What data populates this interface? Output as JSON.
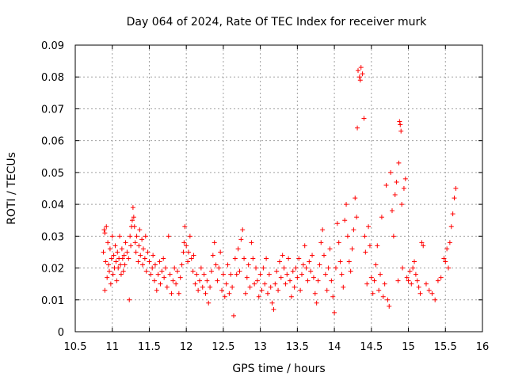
{
  "chart_data": {
    "type": "scatter",
    "title": "Day 064 of 2024, Rate Of TEC Index for receiver murk",
    "xlabel": "GPS time / hours",
    "ylabel": "ROTI / TECUs",
    "xlim": [
      10.5,
      16
    ],
    "ylim": [
      0,
      0.09
    ],
    "xticks": [
      "10.5",
      "11",
      "11.5",
      "12",
      "12.5",
      "13",
      "13.5",
      "14",
      "14.5",
      "15",
      "15.5",
      "16"
    ],
    "yticks": [
      "0",
      "0.01",
      "0.02",
      "0.03",
      "0.04",
      "0.05",
      "0.06",
      "0.07",
      "0.08",
      "0.09"
    ],
    "grid": true,
    "marker": "+",
    "color": "#ff0000",
    "series": [
      {
        "name": "ROTI",
        "points": [
          [
            10.88,
            0.025
          ],
          [
            10.89,
            0.032
          ],
          [
            10.9,
            0.013
          ],
          [
            10.9,
            0.031
          ],
          [
            10.91,
            0.022
          ],
          [
            10.92,
            0.033
          ],
          [
            10.93,
            0.017
          ],
          [
            10.94,
            0.028
          ],
          [
            10.95,
            0.021
          ],
          [
            10.96,
            0.019
          ],
          [
            10.97,
            0.026
          ],
          [
            10.98,
            0.015
          ],
          [
            10.99,
            0.023
          ],
          [
            11.0,
            0.03
          ],
          [
            11.01,
            0.018
          ],
          [
            11.02,
            0.024
          ],
          [
            11.03,
            0.02
          ],
          [
            11.04,
            0.027
          ],
          [
            11.05,
            0.022
          ],
          [
            11.06,
            0.016
          ],
          [
            11.07,
            0.025
          ],
          [
            11.08,
            0.02
          ],
          [
            11.09,
            0.023
          ],
          [
            11.1,
            0.03
          ],
          [
            11.11,
            0.021
          ],
          [
            11.12,
            0.018
          ],
          [
            11.13,
            0.026
          ],
          [
            11.14,
            0.023
          ],
          [
            11.15,
            0.019
          ],
          [
            11.16,
            0.024
          ],
          [
            11.17,
            0.021
          ],
          [
            11.18,
            0.028
          ],
          [
            11.2,
            0.025
          ],
          [
            11.22,
            0.023
          ],
          [
            11.23,
            0.01
          ],
          [
            11.24,
            0.03
          ],
          [
            11.25,
            0.027
          ],
          [
            11.26,
            0.033
          ],
          [
            11.27,
            0.035
          ],
          [
            11.28,
            0.039
          ],
          [
            11.29,
            0.036
          ],
          [
            11.3,
            0.033
          ],
          [
            11.31,
            0.028
          ],
          [
            11.32,
            0.025
          ],
          [
            11.33,
            0.03
          ],
          [
            11.35,
            0.022
          ],
          [
            11.36,
            0.027
          ],
          [
            11.37,
            0.032
          ],
          [
            11.38,
            0.024
          ],
          [
            11.4,
            0.029
          ],
          [
            11.41,
            0.021
          ],
          [
            11.42,
            0.026
          ],
          [
            11.44,
            0.023
          ],
          [
            11.45,
            0.03
          ],
          [
            11.46,
            0.019
          ],
          [
            11.48,
            0.025
          ],
          [
            11.5,
            0.022
          ],
          [
            11.52,
            0.018
          ],
          [
            11.54,
            0.02
          ],
          [
            11.55,
            0.024
          ],
          [
            11.57,
            0.016
          ],
          [
            11.58,
            0.021
          ],
          [
            11.6,
            0.013
          ],
          [
            11.62,
            0.018
          ],
          [
            11.64,
            0.022
          ],
          [
            11.65,
            0.015
          ],
          [
            11.67,
            0.019
          ],
          [
            11.69,
            0.023
          ],
          [
            11.7,
            0.017
          ],
          [
            11.72,
            0.02
          ],
          [
            11.74,
            0.014
          ],
          [
            11.76,
            0.03
          ],
          [
            11.78,
            0.018
          ],
          [
            11.8,
            0.012
          ],
          [
            11.82,
            0.016
          ],
          [
            11.84,
            0.02
          ],
          [
            11.86,
            0.015
          ],
          [
            11.88,
            0.019
          ],
          [
            11.9,
            0.012
          ],
          [
            11.92,
            0.017
          ],
          [
            11.94,
            0.021
          ],
          [
            11.96,
            0.025
          ],
          [
            11.97,
            0.028
          ],
          [
            11.98,
            0.033
          ],
          [
            12.0,
            0.027
          ],
          [
            12.02,
            0.022
          ],
          [
            12.03,
            0.025
          ],
          [
            12.05,
            0.03
          ],
          [
            12.07,
            0.023
          ],
          [
            12.09,
            0.019
          ],
          [
            12.1,
            0.024
          ],
          [
            12.12,
            0.015
          ],
          [
            12.14,
            0.018
          ],
          [
            12.16,
            0.013
          ],
          [
            12.18,
            0.016
          ],
          [
            12.2,
            0.02
          ],
          [
            12.22,
            0.014
          ],
          [
            12.24,
            0.018
          ],
          [
            12.26,
            0.012
          ],
          [
            12.28,
            0.016
          ],
          [
            12.3,
            0.009
          ],
          [
            12.32,
            0.014
          ],
          [
            12.34,
            0.019
          ],
          [
            12.36,
            0.024
          ],
          [
            12.38,
            0.028
          ],
          [
            12.4,
            0.021
          ],
          [
            12.42,
            0.016
          ],
          [
            12.44,
            0.02
          ],
          [
            12.46,
            0.025
          ],
          [
            12.48,
            0.013
          ],
          [
            12.5,
            0.018
          ],
          [
            12.52,
            0.011
          ],
          [
            12.54,
            0.015
          ],
          [
            12.56,
            0.021
          ],
          [
            12.58,
            0.012
          ],
          [
            12.6,
            0.018
          ],
          [
            12.62,
            0.014
          ],
          [
            12.64,
            0.005
          ],
          [
            12.66,
            0.023
          ],
          [
            12.68,
            0.018
          ],
          [
            12.7,
            0.026
          ],
          [
            12.72,
            0.019
          ],
          [
            12.74,
            0.029
          ],
          [
            12.76,
            0.032
          ],
          [
            12.78,
            0.023
          ],
          [
            12.8,
            0.012
          ],
          [
            12.82,
            0.017
          ],
          [
            12.84,
            0.021
          ],
          [
            12.86,
            0.014
          ],
          [
            12.88,
            0.028
          ],
          [
            12.9,
            0.023
          ],
          [
            12.92,
            0.015
          ],
          [
            12.94,
            0.02
          ],
          [
            12.96,
            0.016
          ],
          [
            12.98,
            0.011
          ],
          [
            13.0,
            0.018
          ],
          [
            13.02,
            0.013
          ],
          [
            13.04,
            0.02
          ],
          [
            13.06,
            0.015
          ],
          [
            13.08,
            0.023
          ],
          [
            13.1,
            0.012
          ],
          [
            13.12,
            0.018
          ],
          [
            13.14,
            0.014
          ],
          [
            13.16,
            0.009
          ],
          [
            13.18,
            0.007
          ],
          [
            13.2,
            0.015
          ],
          [
            13.22,
            0.019
          ],
          [
            13.24,
            0.013
          ],
          [
            13.26,
            0.022
          ],
          [
            13.28,
            0.017
          ],
          [
            13.3,
            0.024
          ],
          [
            13.32,
            0.02
          ],
          [
            13.34,
            0.015
          ],
          [
            13.36,
            0.018
          ],
          [
            13.38,
            0.023
          ],
          [
            13.4,
            0.016
          ],
          [
            13.42,
            0.011
          ],
          [
            13.44,
            0.019
          ],
          [
            13.46,
            0.014
          ],
          [
            13.48,
            0.02
          ],
          [
            13.5,
            0.017
          ],
          [
            13.52,
            0.023
          ],
          [
            13.54,
            0.013
          ],
          [
            13.56,
            0.018
          ],
          [
            13.58,
            0.021
          ],
          [
            13.6,
            0.027
          ],
          [
            13.62,
            0.02
          ],
          [
            13.64,
            0.016
          ],
          [
            13.66,
            0.022
          ],
          [
            13.68,
            0.019
          ],
          [
            13.7,
            0.024
          ],
          [
            13.72,
            0.017
          ],
          [
            13.74,
            0.012
          ],
          [
            13.76,
            0.009
          ],
          [
            13.78,
            0.016
          ],
          [
            13.8,
            0.021
          ],
          [
            13.82,
            0.028
          ],
          [
            13.84,
            0.032
          ],
          [
            13.86,
            0.024
          ],
          [
            13.88,
            0.018
          ],
          [
            13.9,
            0.013
          ],
          [
            13.92,
            0.02
          ],
          [
            13.94,
            0.026
          ],
          [
            13.96,
            0.016
          ],
          [
            13.98,
            0.011
          ],
          [
            14.0,
            0.006
          ],
          [
            14.02,
            0.02
          ],
          [
            14.04,
            0.034
          ],
          [
            14.06,
            0.028
          ],
          [
            14.08,
            0.022
          ],
          [
            14.1,
            0.018
          ],
          [
            14.12,
            0.014
          ],
          [
            14.14,
            0.035
          ],
          [
            14.16,
            0.04
          ],
          [
            14.18,
            0.03
          ],
          [
            14.2,
            0.022
          ],
          [
            14.22,
            0.019
          ],
          [
            14.24,
            0.026
          ],
          [
            14.26,
            0.032
          ],
          [
            14.28,
            0.042
          ],
          [
            14.3,
            0.036
          ],
          [
            14.31,
            0.064
          ],
          [
            14.32,
            0.082
          ],
          [
            14.34,
            0.08
          ],
          [
            14.35,
            0.079
          ],
          [
            14.36,
            0.083
          ],
          [
            14.38,
            0.081
          ],
          [
            14.4,
            0.067
          ],
          [
            14.41,
            0.03
          ],
          [
            14.42,
            0.025
          ],
          [
            14.44,
            0.015
          ],
          [
            14.46,
            0.033
          ],
          [
            14.48,
            0.027
          ],
          [
            14.5,
            0.017
          ],
          [
            14.52,
            0.012
          ],
          [
            14.54,
            0.016
          ],
          [
            14.56,
            0.021
          ],
          [
            14.58,
            0.027
          ],
          [
            14.6,
            0.013
          ],
          [
            14.62,
            0.018
          ],
          [
            14.64,
            0.036
          ],
          [
            14.66,
            0.011
          ],
          [
            14.68,
            0.015
          ],
          [
            14.7,
            0.046
          ],
          [
            14.72,
            0.01
          ],
          [
            14.74,
            0.008
          ],
          [
            14.76,
            0.05
          ],
          [
            14.78,
            0.038
          ],
          [
            14.8,
            0.03
          ],
          [
            14.82,
            0.043
          ],
          [
            14.84,
            0.047
          ],
          [
            14.86,
            0.016
          ],
          [
            14.87,
            0.053
          ],
          [
            14.88,
            0.066
          ],
          [
            14.89,
            0.065
          ],
          [
            14.9,
            0.063
          ],
          [
            14.91,
            0.04
          ],
          [
            14.92,
            0.02
          ],
          [
            14.94,
            0.045
          ],
          [
            14.96,
            0.048
          ],
          [
            14.98,
            0.017
          ],
          [
            15.0,
            0.016
          ],
          [
            15.02,
            0.019
          ],
          [
            15.04,
            0.015
          ],
          [
            15.06,
            0.02
          ],
          [
            15.08,
            0.022
          ],
          [
            15.1,
            0.018
          ],
          [
            15.12,
            0.016
          ],
          [
            15.14,
            0.014
          ],
          [
            15.16,
            0.012
          ],
          [
            15.18,
            0.028
          ],
          [
            15.2,
            0.027
          ],
          [
            15.24,
            0.015
          ],
          [
            15.28,
            0.013
          ],
          [
            15.32,
            0.012
          ],
          [
            15.36,
            0.01
          ],
          [
            15.4,
            0.016
          ],
          [
            15.44,
            0.017
          ],
          [
            15.48,
            0.023
          ],
          [
            15.5,
            0.022
          ],
          [
            15.52,
            0.026
          ],
          [
            15.54,
            0.02
          ],
          [
            15.56,
            0.028
          ],
          [
            15.58,
            0.033
          ],
          [
            15.6,
            0.037
          ],
          [
            15.62,
            0.042
          ],
          [
            15.64,
            0.045
          ]
        ]
      }
    ]
  }
}
